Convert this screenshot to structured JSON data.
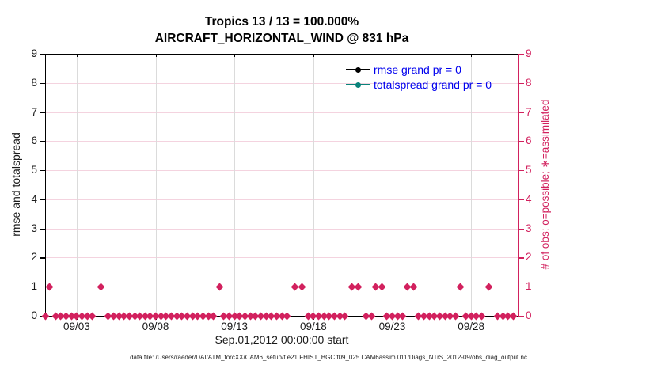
{
  "title": {
    "line1": "Tropics 13 / 13 = 100.000%",
    "line2": "AIRCRAFT_HORIZONTAL_WIND @ 831 hPa"
  },
  "legend": {
    "text_color": "#0000EE",
    "items": [
      {
        "label": "rmse grand pr = 0",
        "color": "#000000",
        "marker": "dot"
      },
      {
        "label": "totalspread grand pr = 0",
        "color": "#0B837B",
        "marker": "dot"
      }
    ]
  },
  "footer": "data file: /Users/raeder/DAI/ATM_forcXX/CAM6_setup/f.e21.FHIST_BGC.f09_025.CAM6assim.011/Diags_NTrS_2012-09/obs_diag_output.nc",
  "colors": {
    "obs_pink": "#D2215E",
    "grid_pink": "#F4D3DF",
    "grid_gray": "#DBDBDB",
    "axis_black": "#000000",
    "tick_label": "#1A1A1A"
  },
  "chart_data": {
    "type": "scatter",
    "title": "Tropics 13 / 13 = 100.000% / AIRCRAFT_HORIZONTAL_WIND @ 831 hPa",
    "xlabel": "Sep.01,2012 00:00:00 start",
    "ylabel_left": "rmse and totalspread",
    "ylabel_right": "# of obs: o=possible; ∗=assimilated",
    "ylim": [
      0,
      9
    ],
    "y_ticks": [
      0,
      1,
      2,
      3,
      4,
      5,
      6,
      7,
      8,
      9
    ],
    "x_range_days": [
      0,
      30
    ],
    "x_ticks": [
      {
        "day": 2,
        "label": "09/03"
      },
      {
        "day": 7,
        "label": "09/08"
      },
      {
        "day": 12,
        "label": "09/13"
      },
      {
        "day": 17,
        "label": "09/18"
      },
      {
        "day": 22,
        "label": "09/23"
      },
      {
        "day": 27,
        "label": "09/28"
      }
    ],
    "legend_position": "top-right-inside",
    "grid": true,
    "series": [
      {
        "name": "rmse grand pr = 0",
        "color": "#000000",
        "points": []
      },
      {
        "name": "totalspread grand pr = 0",
        "color": "#0B837B",
        "points": []
      },
      {
        "name": "# of obs (o=possible and *=assimilated markers overlap)",
        "color": "#D2215E",
        "marker": "diamond",
        "bin_step_days": 0.3333,
        "count_one_days": [
          0.25,
          3.55,
          11.05,
          15.85,
          16.3,
          19.45,
          19.85,
          20.95,
          21.35,
          22.95,
          23.35,
          26.3,
          28.1
        ],
        "all_other_bins_count": 0
      }
    ]
  }
}
